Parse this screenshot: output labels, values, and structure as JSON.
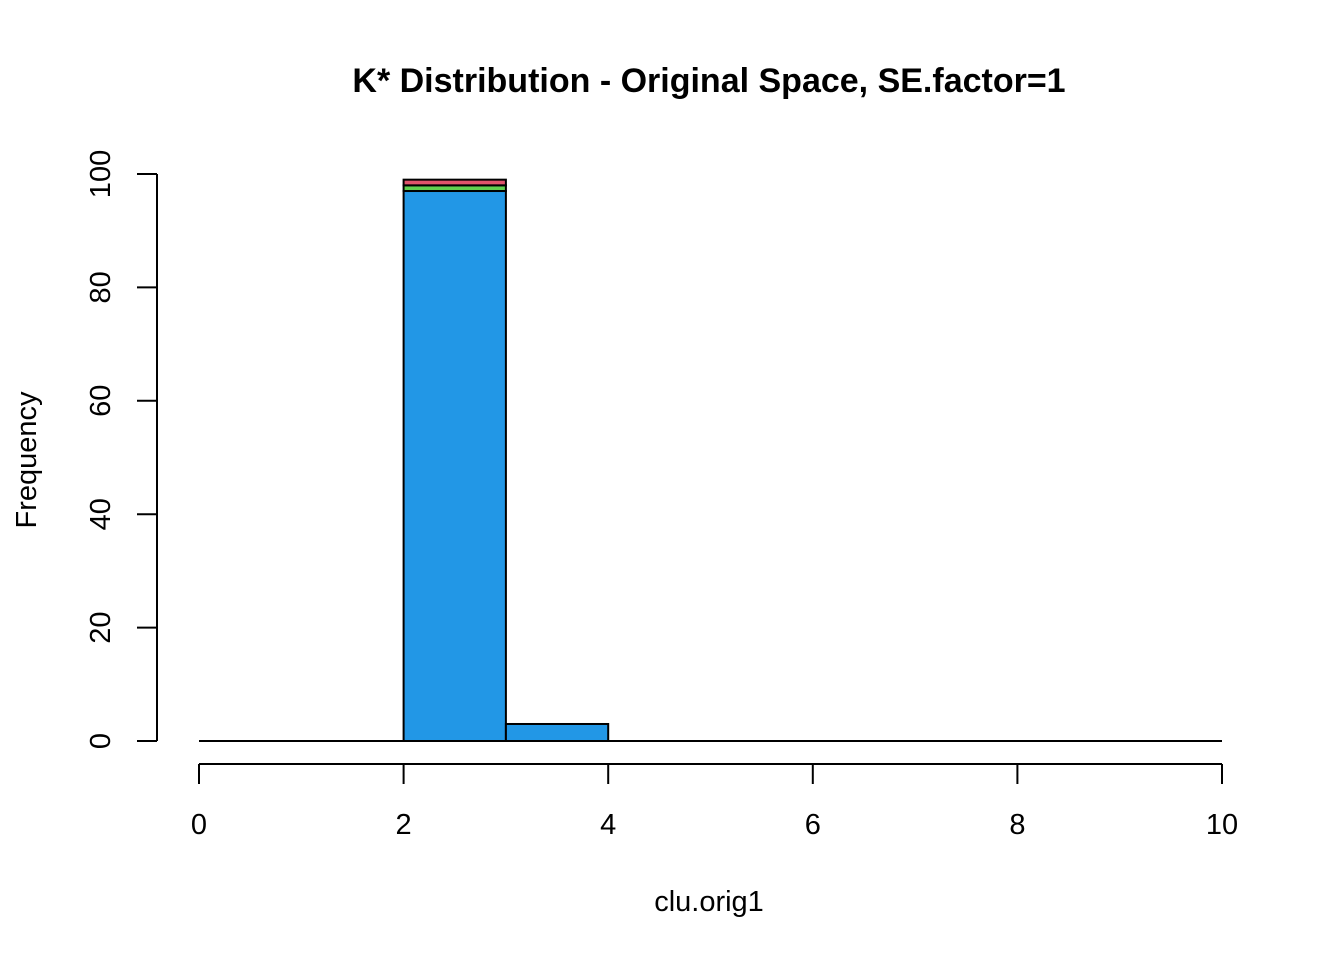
{
  "chart_data": {
    "type": "bar",
    "title": "K* Distribution - Original Space, SE.factor=1",
    "xlabel": "clu.orig1",
    "ylabel": "Frequency",
    "xlim": [
      0,
      10
    ],
    "ylim": [
      0,
      100
    ],
    "x_ticks": [
      "0",
      "2",
      "4",
      "6",
      "8",
      "10"
    ],
    "y_ticks": [
      "0",
      "20",
      "40",
      "60",
      "80",
      "100"
    ],
    "bins": [
      {
        "from": 2,
        "to": 3,
        "segments": [
          {
            "value": 97,
            "color": "#2297E6"
          },
          {
            "value": 1,
            "color": "#61D04F"
          },
          {
            "value": 1,
            "color": "#DF536B"
          }
        ]
      },
      {
        "from": 3,
        "to": 4,
        "segments": [
          {
            "value": 3,
            "color": "#2297E6"
          }
        ]
      }
    ]
  }
}
